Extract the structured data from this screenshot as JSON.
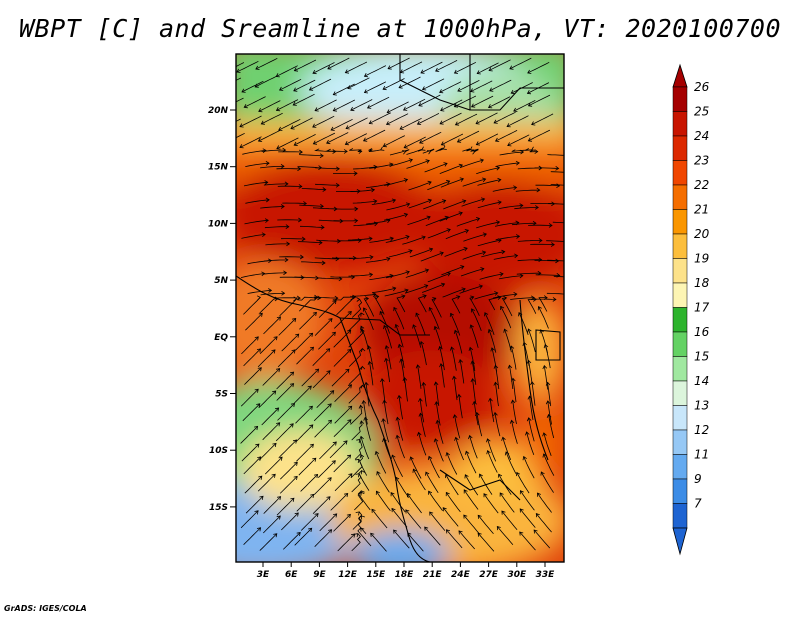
{
  "title": "WBPT [C] and Sreamline at 1000hPa, VT: 2020100700",
  "credit": "GrADS: IGES/COLA",
  "map": {
    "lat_labels": [
      "20N",
      "15N",
      "10N",
      "5N",
      "EQ",
      "5S",
      "10S",
      "15S"
    ],
    "lon_labels": [
      "3E",
      "6E",
      "9E",
      "12E",
      "15E",
      "18E",
      "21E",
      "24E",
      "27E",
      "30E",
      "33E"
    ]
  },
  "colorbar": {
    "labels": [
      "26",
      "25",
      "24",
      "23",
      "22",
      "21",
      "20",
      "19",
      "18",
      "17",
      "16",
      "15",
      "14",
      "13",
      "12",
      "11",
      "9",
      "7"
    ],
    "colors": [
      "#a50000",
      "#c81400",
      "#dc2800",
      "#f04600",
      "#f56e00",
      "#fa9600",
      "#fcbe3c",
      "#fde28a",
      "#fdf5b4",
      "#2db42d",
      "#64d264",
      "#a0e8a0",
      "#dcf5dc",
      "#c8e6fa",
      "#96c8f5",
      "#64aaf0",
      "#3c8ce6",
      "#1e64d2"
    ],
    "top_arrow_color": "#a50000",
    "bottom_arrow_color": "#1e64d2"
  }
}
